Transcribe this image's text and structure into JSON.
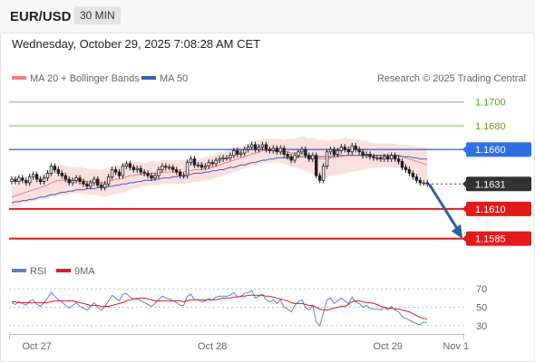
{
  "header": {
    "pair": "EUR/USD",
    "timeframe": "30 MIN",
    "datetime": "Wednesday, October 29, 2025 7:08:28 AM CET"
  },
  "legend": {
    "ma20": "MA 20 + Bollinger Bands",
    "ma50": "MA 50",
    "credit": "Research © 2025 Trading Central",
    "rsi": "RSI",
    "rsi_ma": "9MA"
  },
  "colors": {
    "candle": "#1f1f1f",
    "ma20": "#f08080",
    "band_fill": "#fbd5d5",
    "ma50": "#3d5fa6",
    "level_green": "#7cc04a",
    "level_blue": "#2e6fe6",
    "level_red": "#e31a1a",
    "current": "#333333",
    "arrow": "#2b5f9e",
    "rsi": "#5b7fd6",
    "rsi_ma": "#e31a1a"
  },
  "chart_data": {
    "type": "candlestick",
    "price_ylim": [
      1.1571,
      1.1715
    ],
    "levels": [
      {
        "value": 1.17,
        "label": "1.1700",
        "kind": "green"
      },
      {
        "value": 1.168,
        "label": "1.1680",
        "kind": "green"
      },
      {
        "value": 1.166,
        "label": "1.1660",
        "kind": "blue"
      },
      {
        "value": 1.1631,
        "label": "1.1631",
        "kind": "current"
      },
      {
        "value": 1.161,
        "label": "1.1610",
        "kind": "red"
      },
      {
        "value": 1.1585,
        "label": "1.1585",
        "kind": "red"
      }
    ],
    "x_ticks": [
      {
        "index": 7,
        "label": "Oct 27"
      },
      {
        "index": 56,
        "label": "Oct 28"
      },
      {
        "index": 105,
        "label": "Oct 29"
      },
      {
        "index": 124,
        "label": "Nov 1"
      }
    ],
    "closes": [
      1.1635,
      1.1633,
      1.1636,
      1.1634,
      1.1632,
      1.1637,
      1.1639,
      1.1635,
      1.1633,
      1.1636,
      1.164,
      1.1646,
      1.1643,
      1.164,
      1.1638,
      1.1635,
      1.1632,
      1.1634,
      1.1636,
      1.1633,
      1.1631,
      1.1629,
      1.1632,
      1.1635,
      1.163,
      1.1628,
      1.1631,
      1.1637,
      1.1643,
      1.1641,
      1.1638,
      1.1646,
      1.1648,
      1.1645,
      1.1643,
      1.1644,
      1.1641,
      1.164,
      1.1638,
      1.1636,
      1.1638,
      1.1643,
      1.1646,
      1.1645,
      1.1645,
      1.1643,
      1.1641,
      1.1638,
      1.1638,
      1.1649,
      1.1652,
      1.1647,
      1.1647,
      1.1645,
      1.1646,
      1.1649,
      1.1648,
      1.1651,
      1.1652,
      1.1653,
      1.1653,
      1.1655,
      1.1659,
      1.1656,
      1.1657,
      1.166,
      1.1662,
      1.1664,
      1.166,
      1.1662,
      1.1664,
      1.166,
      1.1659,
      1.1661,
      1.1658,
      1.1661,
      1.1656,
      1.1654,
      1.1651,
      1.1655,
      1.1658,
      1.166,
      1.1655,
      1.1652,
      1.1655,
      1.1638,
      1.1634,
      1.1646,
      1.1658,
      1.166,
      1.1656,
      1.1659,
      1.1662,
      1.166,
      1.1658,
      1.1663,
      1.166,
      1.1658,
      1.1655,
      1.1656,
      1.1654,
      1.1653,
      1.1653,
      1.1652,
      1.1654,
      1.1652,
      1.1655,
      1.1652,
      1.165,
      1.1645,
      1.1643,
      1.164,
      1.1637,
      1.1634,
      1.1632,
      1.1632,
      1.1631
    ],
    "ma20": [
      1.162,
      1.1621,
      1.1622,
      1.1623,
      1.1624,
      1.1625,
      1.1626,
      1.1627,
      1.1628,
      1.1629,
      1.163,
      1.1632,
      1.1633,
      1.1634,
      1.1634,
      1.1634,
      1.1634,
      1.1634,
      1.1634,
      1.1634,
      1.1634,
      1.1633,
      1.1633,
      1.1633,
      1.1632,
      1.1632,
      1.1632,
      1.1633,
      1.1634,
      1.1635,
      1.1635,
      1.1636,
      1.1637,
      1.1638,
      1.1638,
      1.1639,
      1.1639,
      1.1639,
      1.1639,
      1.164,
      1.164,
      1.164,
      1.1641,
      1.1641,
      1.1641,
      1.1641,
      1.1641,
      1.1641,
      1.1641,
      1.1642,
      1.1642,
      1.1643,
      1.1643,
      1.1643,
      1.1644,
      1.1644,
      1.1645,
      1.1646,
      1.1647,
      1.1648,
      1.1649,
      1.165,
      1.1651,
      1.1652,
      1.1653,
      1.1654,
      1.1655,
      1.1656,
      1.1657,
      1.1658,
      1.1659,
      1.1659,
      1.1659,
      1.1659,
      1.1659,
      1.1659,
      1.1658,
      1.1658,
      1.1657,
      1.1657,
      1.1657,
      1.1657,
      1.1656,
      1.1655,
      1.1655,
      1.1653,
      1.1652,
      1.1652,
      1.1652,
      1.1653,
      1.1653,
      1.1654,
      1.1654,
      1.1655,
      1.1655,
      1.1655,
      1.1655,
      1.1655,
      1.1655,
      1.1655,
      1.1655,
      1.1655,
      1.1655,
      1.1655,
      1.1655,
      1.1655,
      1.1655,
      1.1655,
      1.1654,
      1.1654,
      1.1653,
      1.1652,
      1.1651,
      1.165,
      1.1649,
      1.1648,
      1.1647
    ],
    "band_width": [
      0.0009,
      0.0009,
      0.0009,
      0.0009,
      0.0009,
      0.001,
      0.001,
      0.001,
      0.001,
      0.0011,
      0.0011,
      0.0012,
      0.0013,
      0.0013,
      0.0013,
      0.0012,
      0.0012,
      0.0011,
      0.0011,
      0.0011,
      0.0011,
      0.0011,
      0.0011,
      0.0011,
      0.0011,
      0.0011,
      0.0012,
      0.0012,
      0.0012,
      0.0012,
      0.0012,
      0.0012,
      0.0012,
      0.0012,
      0.0011,
      0.0011,
      0.001,
      0.001,
      0.001,
      0.001,
      0.001,
      0.001,
      0.001,
      0.001,
      0.001,
      0.001,
      0.001,
      0.001,
      0.001,
      0.001,
      0.001,
      0.001,
      0.001,
      0.001,
      0.001,
      0.001,
      0.001,
      0.001,
      0.001,
      0.001,
      0.001,
      0.001,
      0.001,
      0.001,
      0.001,
      0.001,
      0.001,
      0.001,
      0.001,
      0.001,
      0.001,
      0.001,
      0.001,
      0.001,
      0.001,
      0.001,
      0.001,
      0.0011,
      0.0012,
      0.0012,
      0.0013,
      0.0014,
      0.0014,
      0.0014,
      0.0015,
      0.0016,
      0.0016,
      0.0016,
      0.0015,
      0.0015,
      0.0015,
      0.0015,
      0.0015,
      0.0015,
      0.0014,
      0.0014,
      0.0013,
      0.0013,
      0.0012,
      0.0012,
      0.0011,
      0.0011,
      0.001,
      0.001,
      0.001,
      0.001,
      0.001,
      0.001,
      0.001,
      0.001,
      0.0011,
      0.0011,
      0.0012,
      0.0012,
      0.0013,
      0.0014,
      0.0014,
      0.0014,
      0.0014
    ],
    "ma50": [
      1.1615,
      1.1616,
      1.1616,
      1.1617,
      1.1617,
      1.1618,
      1.1618,
      1.1619,
      1.162,
      1.162,
      1.1621,
      1.1622,
      1.1622,
      1.1623,
      1.1624,
      1.1624,
      1.1625,
      1.1625,
      1.1626,
      1.1626,
      1.1626,
      1.1627,
      1.1627,
      1.1627,
      1.1628,
      1.1628,
      1.1628,
      1.1629,
      1.1629,
      1.163,
      1.163,
      1.1631,
      1.1631,
      1.1632,
      1.1632,
      1.1633,
      1.1633,
      1.1634,
      1.1634,
      1.1634,
      1.1635,
      1.1635,
      1.1636,
      1.1636,
      1.1636,
      1.1637,
      1.1637,
      1.1638,
      1.1638,
      1.1639,
      1.1639,
      1.164,
      1.164,
      1.164,
      1.1641,
      1.1641,
      1.1642,
      1.1642,
      1.1643,
      1.1643,
      1.1644,
      1.1645,
      1.1645,
      1.1646,
      1.1647,
      1.1647,
      1.1648,
      1.1649,
      1.1649,
      1.165,
      1.1651,
      1.1651,
      1.1652,
      1.1652,
      1.1653,
      1.1653,
      1.1653,
      1.1653,
      1.1653,
      1.1653,
      1.1654,
      1.1654,
      1.1654,
      1.1654,
      1.1654,
      1.1654,
      1.1654,
      1.1654,
      1.1654,
      1.1654,
      1.1655,
      1.1655,
      1.1655,
      1.1655,
      1.1655,
      1.1655,
      1.1655,
      1.1655,
      1.1655,
      1.1655,
      1.1655,
      1.1655,
      1.1655,
      1.1655,
      1.1655,
      1.1655,
      1.1655,
      1.1655,
      1.1655,
      1.1654,
      1.1654,
      1.1654,
      1.1653,
      1.1653,
      1.1652,
      1.1652,
      1.1652
    ],
    "forecast": {
      "from_index": 116,
      "from": 1.1631,
      "to": 1.1585
    },
    "rsi": {
      "ylim": [
        24,
        76
      ],
      "ticks": [
        70,
        50,
        30
      ],
      "values": [
        55,
        53,
        56,
        54,
        52,
        57,
        58,
        53,
        51,
        55,
        60,
        66,
        62,
        58,
        56,
        52,
        49,
        52,
        55,
        51,
        49,
        47,
        51,
        55,
        50,
        47,
        51,
        57,
        63,
        60,
        57,
        64,
        65,
        61,
        59,
        60,
        57,
        55,
        53,
        51,
        54,
        58,
        62,
        60,
        59,
        57,
        55,
        52,
        52,
        62,
        64,
        58,
        58,
        56,
        57,
        59,
        58,
        61,
        62,
        62,
        62,
        63,
        66,
        61,
        62,
        65,
        66,
        68,
        60,
        62,
        64,
        58,
        56,
        58,
        54,
        58,
        50,
        48,
        45,
        52,
        56,
        58,
        50,
        47,
        52,
        34,
        30,
        44,
        58,
        60,
        54,
        57,
        60,
        57,
        54,
        61,
        56,
        54,
        50,
        52,
        49,
        48,
        48,
        47,
        50,
        47,
        51,
        47,
        45,
        40,
        38,
        36,
        34,
        32,
        31,
        34,
        33
      ],
      "ma": [
        56,
        56,
        55,
        55,
        55,
        55,
        55,
        55,
        55,
        55,
        55,
        56,
        57,
        57,
        57,
        57,
        57,
        57,
        56,
        55,
        54,
        53,
        52,
        52,
        52,
        51,
        51,
        51,
        52,
        53,
        54,
        55,
        57,
        58,
        59,
        59,
        60,
        60,
        59,
        58,
        57,
        57,
        57,
        57,
        57,
        57,
        57,
        57,
        56,
        57,
        58,
        58,
        58,
        58,
        58,
        58,
        58,
        58,
        59,
        60,
        60,
        60,
        61,
        61,
        62,
        62,
        63,
        63,
        63,
        63,
        63,
        62,
        62,
        61,
        60,
        59,
        58,
        57,
        55,
        54,
        54,
        54,
        53,
        52,
        52,
        50,
        48,
        47,
        47,
        48,
        49,
        50,
        51,
        51,
        53,
        56,
        57,
        57,
        56,
        55,
        55,
        54,
        53,
        51,
        50,
        49,
        49,
        48,
        48,
        47,
        46,
        45,
        43,
        41,
        39,
        38,
        37
      ]
    }
  }
}
